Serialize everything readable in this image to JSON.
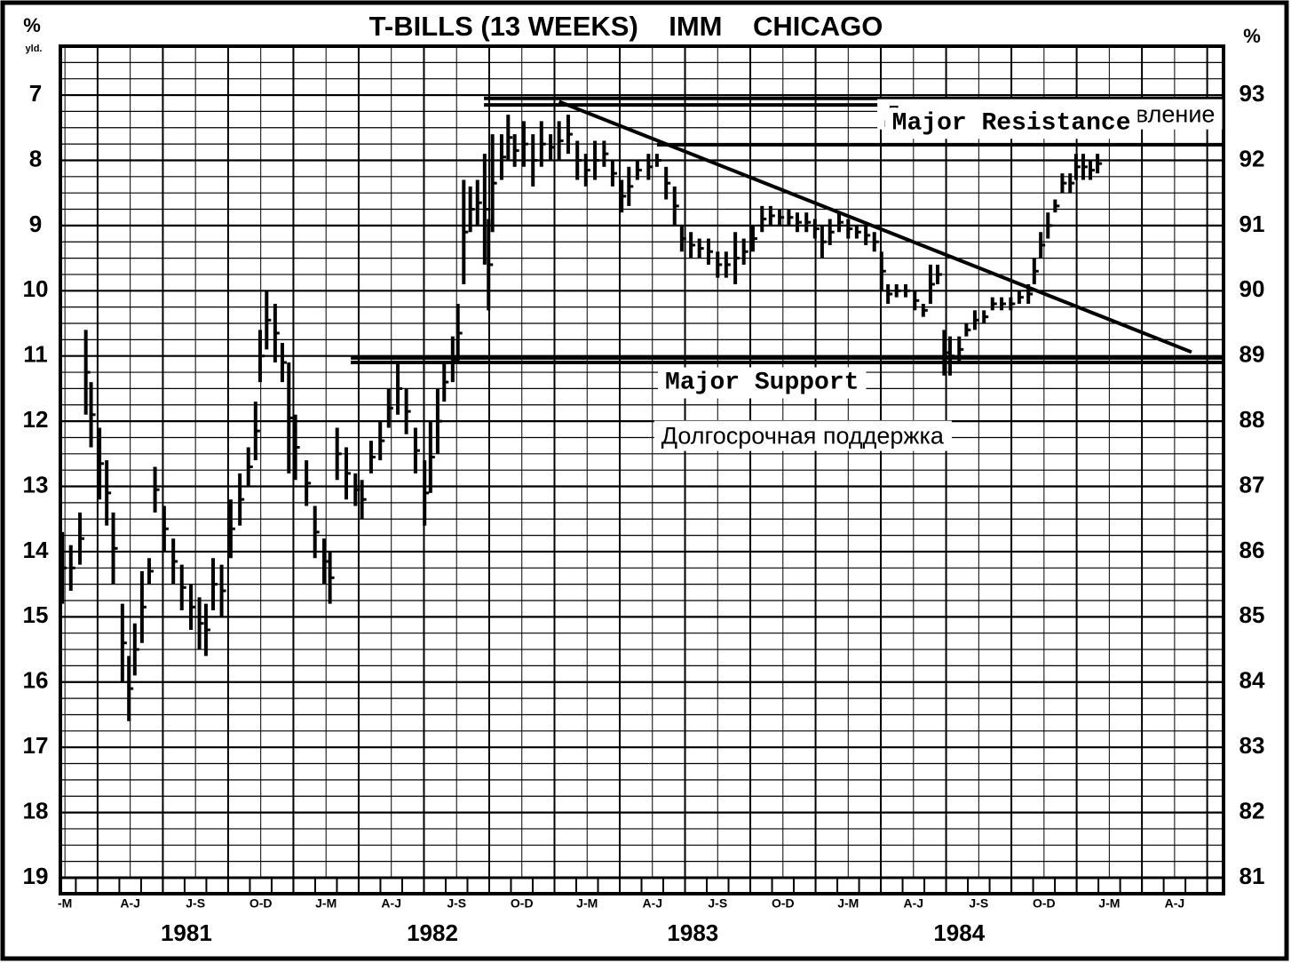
{
  "chart_data": {
    "type": "hilo",
    "title": "T-BILLS (13 WEEKS)    IMM    CHICAGO",
    "y_unit": "%",
    "y_unit_sub": "yld.",
    "y2_unit": "%",
    "ylim": [
      19,
      6.25
    ],
    "yticks": [
      7,
      8,
      9,
      10,
      11,
      12,
      13,
      14,
      15,
      16,
      17,
      18,
      19
    ],
    "y2lim": [
      81,
      93.75
    ],
    "y2ticks": [
      81,
      82,
      83,
      84,
      85,
      86,
      87,
      88,
      89,
      90,
      91,
      92,
      93
    ],
    "xlim": [
      0.43,
      18.25
    ],
    "xticks": [
      1,
      2,
      3,
      4,
      5,
      6,
      7,
      8,
      9,
      10,
      11,
      12,
      13,
      14,
      15,
      16,
      17,
      18
    ],
    "categories": [
      "-M",
      "A-J",
      "J-S",
      "O-D",
      "J-M",
      "A-J",
      "J-S",
      "O-D",
      "J-M",
      "A-J",
      "J-S",
      "O-D",
      "J-M",
      "A-J",
      "J-S",
      "O-D",
      "J-M",
      "A-J"
    ],
    "years": [
      {
        "label": "1981",
        "x": 2.36
      },
      {
        "label": "1982",
        "x": 6.13
      },
      {
        "label": "1983",
        "x": 10.12
      },
      {
        "label": "1984",
        "x": 14.2
      }
    ],
    "color": "#000000",
    "grid": true,
    "x": [
      0.46,
      0.59,
      0.73,
      0.82,
      0.9,
      1.03,
      1.14,
      1.24,
      1.38,
      1.48,
      1.57,
      1.68,
      1.79,
      1.88,
      2.02,
      2.16,
      2.29,
      2.43,
      2.56,
      2.66,
      2.77,
      2.9,
      3.04,
      3.18,
      3.31,
      3.42,
      3.49,
      3.59,
      3.72,
      3.83,
      3.93,
      4.03,
      4.2,
      4.33,
      4.47,
      4.56,
      4.67,
      4.81,
      4.95,
      5.05,
      5.19,
      5.33,
      5.46,
      5.6,
      5.73,
      5.87,
      6.01,
      6.1,
      6.21,
      6.31,
      6.44,
      6.52,
      6.61,
      6.71,
      6.82,
      6.93,
      6.99,
      7.05,
      7.19,
      7.29,
      7.39,
      7.53,
      7.67,
      7.8,
      7.94,
      8.07,
      8.21,
      8.35,
      8.48,
      8.62,
      8.76,
      8.89,
      9.03,
      9.14,
      9.27,
      9.44,
      9.57,
      9.71,
      9.84,
      9.95,
      10.09,
      10.22,
      10.36,
      10.5,
      10.63,
      10.77,
      10.9,
      11.04,
      11.18,
      11.31,
      11.45,
      11.59,
      11.72,
      11.86,
      11.99,
      12.1,
      12.22,
      12.36,
      12.5,
      12.63,
      12.77,
      12.9,
      13.01,
      13.11,
      13.24,
      13.38,
      13.52,
      13.65,
      13.76,
      13.87,
      13.97,
      14.06,
      14.2,
      14.31,
      14.44,
      14.58,
      14.71,
      14.85,
      14.99,
      15.12,
      15.26,
      15.35,
      15.45,
      15.56,
      15.67,
      15.78,
      15.9,
      15.99,
      16.1,
      16.21,
      16.32
    ],
    "low": [
      13.7,
      13.9,
      13.4,
      10.6,
      11.4,
      12.1,
      12.6,
      13.4,
      14.8,
      15.6,
      15.1,
      14.3,
      14.1,
      12.7,
      13.3,
      13.8,
      14.2,
      14.5,
      14.7,
      14.8,
      14.1,
      14.2,
      13.2,
      12.8,
      12.4,
      11.7,
      10.6,
      10.0,
      10.2,
      10.8,
      11.1,
      11.9,
      12.6,
      13.3,
      13.8,
      14.0,
      12.1,
      12.4,
      12.8,
      12.9,
      12.3,
      12.0,
      11.5,
      11.1,
      11.5,
      12.1,
      12.6,
      12.0,
      11.5,
      11.1,
      10.7,
      10.2,
      8.3,
      8.4,
      8.3,
      7.9,
      8.9,
      7.6,
      7.6,
      7.3,
      7.6,
      7.4,
      7.6,
      7.4,
      7.6,
      7.4,
      7.3,
      7.7,
      7.9,
      7.7,
      7.7,
      8.0,
      8.3,
      8.1,
      8.0,
      7.9,
      7.9,
      8.1,
      8.4,
      9.0,
      9.1,
      9.2,
      9.2,
      9.4,
      9.4,
      9.1,
      9.2,
      9.0,
      8.7,
      8.7,
      8.75,
      8.75,
      8.8,
      8.8,
      8.9,
      9.0,
      8.9,
      8.8,
      8.9,
      9.0,
      9.0,
      9.1,
      9.4,
      9.9,
      9.9,
      9.9,
      10.0,
      10.2,
      9.6,
      9.6,
      10.6,
      10.7,
      10.7,
      10.5,
      10.3,
      10.3,
      10.1,
      10.1,
      10.1,
      10.0,
      9.9,
      9.5,
      9.1,
      8.8,
      8.6,
      8.2,
      8.2,
      7.9,
      7.9,
      8.0,
      7.9
    ],
    "high": [
      14.8,
      14.6,
      14.2,
      11.9,
      12.4,
      13.2,
      13.6,
      14.5,
      16.0,
      16.6,
      15.9,
      15.4,
      14.5,
      13.4,
      14.0,
      14.5,
      14.9,
      15.2,
      15.5,
      15.6,
      14.9,
      15.0,
      14.1,
      13.6,
      13.0,
      12.6,
      11.4,
      10.9,
      11.1,
      11.4,
      12.8,
      12.9,
      13.3,
      14.1,
      14.5,
      14.8,
      12.9,
      13.2,
      13.3,
      13.5,
      12.8,
      12.6,
      12.1,
      11.9,
      12.2,
      12.8,
      13.6,
      13.1,
      12.5,
      11.7,
      11.4,
      11.1,
      9.9,
      9.1,
      9.0,
      9.6,
      10.3,
      9.1,
      8.3,
      8.0,
      8.1,
      8.1,
      8.4,
      8.1,
      8.0,
      8.0,
      7.9,
      8.3,
      8.4,
      8.3,
      8.1,
      8.4,
      8.8,
      8.7,
      8.3,
      8.3,
      8.1,
      8.6,
      9.0,
      9.4,
      9.5,
      9.5,
      9.6,
      9.8,
      9.8,
      9.9,
      9.6,
      9.4,
      9.1,
      9.0,
      9.0,
      9.0,
      9.1,
      9.1,
      9.2,
      9.5,
      9.3,
      9.1,
      9.2,
      9.2,
      9.3,
      9.4,
      10.0,
      10.2,
      10.1,
      10.1,
      10.3,
      10.4,
      10.2,
      9.9,
      11.3,
      11.3,
      11.1,
      10.7,
      10.6,
      10.5,
      10.3,
      10.3,
      10.3,
      10.2,
      10.2,
      9.9,
      9.5,
      9.2,
      8.8,
      8.5,
      8.5,
      8.3,
      8.3,
      8.3,
      8.2
    ],
    "lines": [
      {
        "x": [
          6.92,
          18.25
        ],
        "y": [
          7.05,
          7.05
        ]
      },
      {
        "x": [
          6.92,
          18.25
        ],
        "y": [
          7.15,
          7.15
        ]
      },
      {
        "x": [
          9.57,
          18.25
        ],
        "y": [
          7.76,
          7.76
        ]
      },
      {
        "x": [
          4.88,
          18.25
        ],
        "y": [
          11.03,
          11.03
        ]
      },
      {
        "x": [
          4.88,
          18.25
        ],
        "y": [
          11.1,
          11.1
        ]
      },
      {
        "x": [
          8.07,
          17.76
        ],
        "y": [
          7.1,
          10.94
        ]
      }
    ],
    "annotations": [
      {
        "text": "Долгосрочное сопротивление",
        "x": 18.12,
        "y": 7.32,
        "style": "ru",
        "anchor": "end"
      },
      {
        "text": "Major Resistance",
        "x": 15.0,
        "y": 7.42,
        "style": "mono",
        "anchor": "middle"
      },
      {
        "text": "Major Support",
        "x": 11.18,
        "y": 11.4,
        "style": "mono",
        "anchor": "middle"
      },
      {
        "text": "Долгосрочная поддержка",
        "x": 11.8,
        "y": 12.25,
        "style": "ru",
        "anchor": "middle"
      }
    ]
  }
}
